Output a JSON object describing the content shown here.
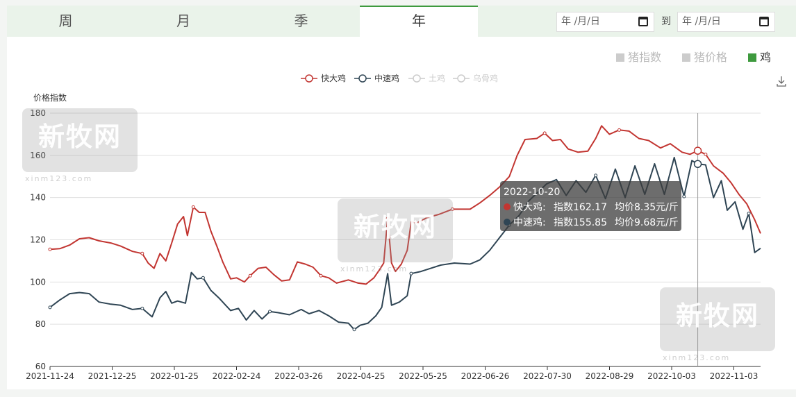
{
  "tabs": [
    {
      "label": "周",
      "active": false
    },
    {
      "label": "月",
      "active": false
    },
    {
      "label": "季",
      "active": false
    },
    {
      "label": "年",
      "active": true
    }
  ],
  "date_range": {
    "start_placeholder": "年 /月/日",
    "separator": "到",
    "end_placeholder": "年 /月/日"
  },
  "type_toggles": [
    {
      "label": "猪指数",
      "active": false
    },
    {
      "label": "猪价格",
      "active": false
    },
    {
      "label": "鸡",
      "active": true
    }
  ],
  "watermark": {
    "text": "新牧网",
    "sub": "xinm123.com"
  },
  "tooltip": {
    "date": "2022-10-20",
    "rows": [
      {
        "name": "快大鸡:",
        "index_text": "指数162.17",
        "price_text": "均价8.35元/斤",
        "color": "#c23531"
      },
      {
        "name": "中速鸡:",
        "index_text": "指数155.85",
        "price_text": "均价9.68元/斤",
        "color": "#2f4554"
      }
    ]
  },
  "chart_data": {
    "type": "line",
    "ylabel": "价格指数",
    "ylim": [
      60,
      180
    ],
    "yticks": [
      60,
      80,
      100,
      120,
      140,
      160,
      180
    ],
    "x_tick_labels": [
      "2021-11-24",
      "2021-12-25",
      "2022-01-25",
      "2022-02-24",
      "2022-03-26",
      "2022-04-25",
      "2022-05-25",
      "2022-06-26",
      "2022-07-30",
      "2022-08-29",
      "2022-10-03",
      "2022-11-03"
    ],
    "x_start": "2021-11-24",
    "x_end": "2022-11-21",
    "grid": true,
    "legend_position": "top-center",
    "highlight_date": "2022-10-20",
    "series": [
      {
        "name": "快大鸡",
        "color": "#c23531",
        "visible": true,
        "points": [
          [
            "2021-11-24",
            115.5
          ],
          [
            "2021-11-29",
            115.8
          ],
          [
            "2021-12-04",
            117.5
          ],
          [
            "2021-12-09",
            120.5
          ],
          [
            "2021-12-14",
            121.0
          ],
          [
            "2021-12-19",
            119.5
          ],
          [
            "2021-12-25",
            118.5
          ],
          [
            "2021-12-30",
            117.0
          ],
          [
            "2022-01-05",
            114.5
          ],
          [
            "2022-01-10",
            113.5
          ],
          [
            "2022-01-13",
            109.0
          ],
          [
            "2022-01-16",
            106.5
          ],
          [
            "2022-01-19",
            113.5
          ],
          [
            "2022-01-22",
            110.0
          ],
          [
            "2022-01-25",
            118.5
          ],
          [
            "2022-01-28",
            127.5
          ],
          [
            "2022-01-31",
            131.0
          ],
          [
            "2022-02-02",
            122.0
          ],
          [
            "2022-02-05",
            135.5
          ],
          [
            "2022-02-08",
            133.0
          ],
          [
            "2022-02-11",
            133.0
          ],
          [
            "2022-02-14",
            124.0
          ],
          [
            "2022-02-17",
            117.0
          ],
          [
            "2022-02-20",
            109.5
          ],
          [
            "2022-02-24",
            101.5
          ],
          [
            "2022-02-27",
            102.0
          ],
          [
            "2022-03-03",
            100.0
          ],
          [
            "2022-03-06",
            103.0
          ],
          [
            "2022-03-10",
            106.5
          ],
          [
            "2022-03-14",
            107.0
          ],
          [
            "2022-03-18",
            103.5
          ],
          [
            "2022-03-22",
            100.5
          ],
          [
            "2022-03-26",
            101.0
          ],
          [
            "2022-03-30",
            109.5
          ],
          [
            "2022-04-03",
            108.5
          ],
          [
            "2022-04-07",
            107.0
          ],
          [
            "2022-04-11",
            103.0
          ],
          [
            "2022-04-15",
            102.0
          ],
          [
            "2022-04-19",
            99.5
          ],
          [
            "2022-04-25",
            101.0
          ],
          [
            "2022-04-30",
            99.5
          ],
          [
            "2022-05-04",
            99.0
          ],
          [
            "2022-05-08",
            102.0
          ],
          [
            "2022-05-11",
            106.0
          ],
          [
            "2022-05-13",
            109.0
          ],
          [
            "2022-05-15",
            130.0
          ],
          [
            "2022-05-17",
            109.0
          ],
          [
            "2022-05-19",
            105.0
          ],
          [
            "2022-05-22",
            108.5
          ],
          [
            "2022-05-25",
            115.0
          ],
          [
            "2022-05-27",
            128.5
          ],
          [
            "2022-05-30",
            128.0
          ],
          [
            "2022-06-04",
            130.5
          ],
          [
            "2022-06-10",
            132.0
          ],
          [
            "2022-06-17",
            134.5
          ],
          [
            "2022-06-26",
            134.5
          ],
          [
            "2022-07-01",
            137.5
          ],
          [
            "2022-07-06",
            141.0
          ],
          [
            "2022-07-11",
            145.0
          ],
          [
            "2022-07-16",
            150.0
          ],
          [
            "2022-07-20",
            160.0
          ],
          [
            "2022-07-24",
            167.5
          ],
          [
            "2022-07-30",
            168.0
          ],
          [
            "2022-08-03",
            170.5
          ],
          [
            "2022-08-07",
            167.0
          ],
          [
            "2022-08-11",
            167.5
          ],
          [
            "2022-08-15",
            163.0
          ],
          [
            "2022-08-20",
            161.5
          ],
          [
            "2022-08-25",
            162.0
          ],
          [
            "2022-08-29",
            168.0
          ],
          [
            "2022-09-01",
            174.0
          ],
          [
            "2022-09-05",
            170.0
          ],
          [
            "2022-09-10",
            172.0
          ],
          [
            "2022-09-15",
            171.5
          ],
          [
            "2022-09-20",
            168.0
          ],
          [
            "2022-09-25",
            167.0
          ],
          [
            "2022-10-01",
            163.5
          ],
          [
            "2022-10-06",
            165.5
          ],
          [
            "2022-10-12",
            161.5
          ],
          [
            "2022-10-16",
            160.5
          ],
          [
            "2022-10-20",
            162.2
          ],
          [
            "2022-10-24",
            160.5
          ],
          [
            "2022-10-28",
            155.0
          ],
          [
            "2022-11-02",
            151.5
          ],
          [
            "2022-11-06",
            147.0
          ],
          [
            "2022-11-10",
            141.5
          ],
          [
            "2022-11-14",
            137.0
          ],
          [
            "2022-11-18",
            129.5
          ],
          [
            "2022-11-21",
            123.0
          ]
        ]
      },
      {
        "name": "中速鸡",
        "color": "#2f4554",
        "visible": true,
        "points": [
          [
            "2021-11-24",
            88.0
          ],
          [
            "2021-11-29",
            91.5
          ],
          [
            "2021-12-04",
            94.5
          ],
          [
            "2021-12-09",
            95.0
          ],
          [
            "2021-12-14",
            94.5
          ],
          [
            "2021-12-19",
            90.5
          ],
          [
            "2021-12-25",
            89.5
          ],
          [
            "2021-12-30",
            89.0
          ],
          [
            "2022-01-05",
            87.0
          ],
          [
            "2022-01-10",
            87.5
          ],
          [
            "2022-01-15",
            83.5
          ],
          [
            "2022-01-19",
            92.5
          ],
          [
            "2022-01-22",
            95.5
          ],
          [
            "2022-01-25",
            90.0
          ],
          [
            "2022-01-28",
            91.0
          ],
          [
            "2022-02-01",
            90.0
          ],
          [
            "2022-02-04",
            104.5
          ],
          [
            "2022-02-07",
            101.5
          ],
          [
            "2022-02-10",
            102.0
          ],
          [
            "2022-02-14",
            96.0
          ],
          [
            "2022-02-18",
            92.5
          ],
          [
            "2022-02-22",
            88.5
          ],
          [
            "2022-02-24",
            86.5
          ],
          [
            "2022-02-28",
            87.5
          ],
          [
            "2022-03-04",
            82.0
          ],
          [
            "2022-03-08",
            86.5
          ],
          [
            "2022-03-12",
            82.5
          ],
          [
            "2022-03-16",
            86.0
          ],
          [
            "2022-03-20",
            85.5
          ],
          [
            "2022-03-26",
            84.5
          ],
          [
            "2022-04-01",
            87.0
          ],
          [
            "2022-04-05",
            85.0
          ],
          [
            "2022-04-10",
            86.5
          ],
          [
            "2022-04-15",
            84.0
          ],
          [
            "2022-04-20",
            81.0
          ],
          [
            "2022-04-25",
            80.5
          ],
          [
            "2022-04-28",
            77.5
          ],
          [
            "2022-05-01",
            79.5
          ],
          [
            "2022-05-05",
            80.5
          ],
          [
            "2022-05-09",
            84.0
          ],
          [
            "2022-05-12",
            88.0
          ],
          [
            "2022-05-15",
            104.0
          ],
          [
            "2022-05-17",
            89.0
          ],
          [
            "2022-05-21",
            90.5
          ],
          [
            "2022-05-25",
            93.5
          ],
          [
            "2022-05-27",
            104.0
          ],
          [
            "2022-06-01",
            105.0
          ],
          [
            "2022-06-06",
            106.5
          ],
          [
            "2022-06-11",
            108.0
          ],
          [
            "2022-06-18",
            109.0
          ],
          [
            "2022-06-26",
            108.5
          ],
          [
            "2022-07-01",
            110.5
          ],
          [
            "2022-07-06",
            115.0
          ],
          [
            "2022-07-11",
            121.0
          ],
          [
            "2022-07-16",
            127.0
          ],
          [
            "2022-07-21",
            131.5
          ],
          [
            "2022-07-26",
            138.5
          ],
          [
            "2022-07-30",
            142.0
          ],
          [
            "2022-08-04",
            146.5
          ],
          [
            "2022-08-09",
            148.5
          ],
          [
            "2022-08-14",
            141.0
          ],
          [
            "2022-08-19",
            148.0
          ],
          [
            "2022-08-24",
            142.5
          ],
          [
            "2022-08-29",
            150.5
          ],
          [
            "2022-09-03",
            139.5
          ],
          [
            "2022-09-08",
            153.5
          ],
          [
            "2022-09-13",
            140.0
          ],
          [
            "2022-09-18",
            155.0
          ],
          [
            "2022-09-23",
            141.5
          ],
          [
            "2022-09-28",
            156.0
          ],
          [
            "2022-10-03",
            141.5
          ],
          [
            "2022-10-08",
            159.0
          ],
          [
            "2022-10-13",
            140.5
          ],
          [
            "2022-10-17",
            157.5
          ],
          [
            "2022-10-20",
            155.9
          ],
          [
            "2022-10-24",
            155.5
          ],
          [
            "2022-10-28",
            140.0
          ],
          [
            "2022-11-01",
            148.0
          ],
          [
            "2022-11-04",
            134.0
          ],
          [
            "2022-11-08",
            138.0
          ],
          [
            "2022-11-12",
            125.0
          ],
          [
            "2022-11-15",
            132.5
          ],
          [
            "2022-11-18",
            114.0
          ],
          [
            "2022-11-21",
            116.0
          ]
        ]
      },
      {
        "name": "土鸡",
        "color": "#cccccc",
        "visible": false,
        "points": []
      },
      {
        "name": "乌骨鸡",
        "color": "#cccccc",
        "visible": false,
        "points": []
      }
    ]
  }
}
